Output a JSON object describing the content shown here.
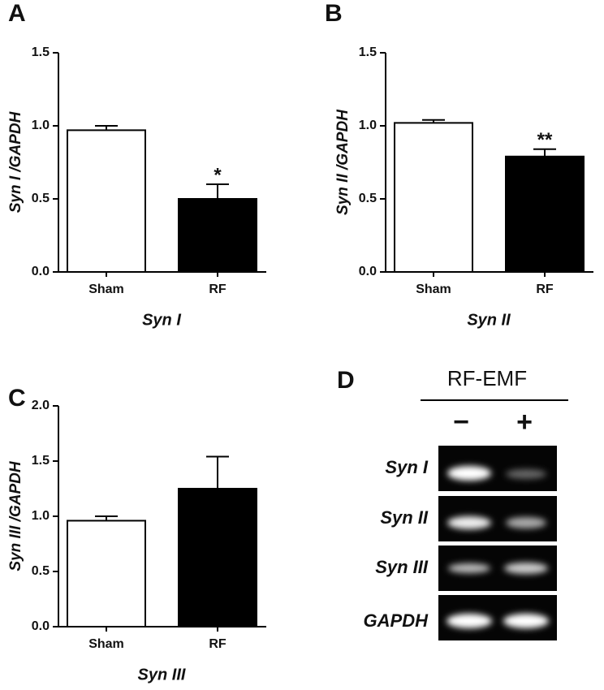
{
  "chart_data": [
    {
      "type": "bar",
      "panel": "A",
      "ylabel": "Syn I /GAPDH",
      "xlabel": "Syn I",
      "categories": [
        "Sham",
        "RF"
      ],
      "values": [
        0.97,
        0.5
      ],
      "errors": [
        0.03,
        0.1
      ],
      "colors": [
        "#ffffff",
        "#000000"
      ],
      "value_annotations": [
        null,
        "*"
      ],
      "ylim": [
        0,
        1.5
      ],
      "yticks": [
        {
          "value": 0,
          "label": "0.0"
        },
        0.5,
        {
          "value": 1,
          "label": "1.0"
        },
        1.5
      ]
    },
    {
      "type": "bar",
      "panel": "B",
      "ylabel": "Syn II /GAPDH",
      "xlabel": "Syn II",
      "categories": [
        "Sham",
        "RF"
      ],
      "values": [
        1.02,
        0.79
      ],
      "errors": [
        0.02,
        0.05
      ],
      "colors": [
        "#ffffff",
        "#000000"
      ],
      "value_annotations": [
        null,
        "**"
      ],
      "ylim": [
        0,
        1.5
      ],
      "yticks": [
        {
          "value": 0,
          "label": "0.0"
        },
        0.5,
        {
          "value": 1,
          "label": "1.0"
        },
        1.5
      ]
    },
    {
      "type": "bar",
      "panel": "C",
      "ylabel": "Syn III /GAPDH",
      "xlabel": "Syn III",
      "categories": [
        "Sham",
        "RF"
      ],
      "values": [
        0.96,
        1.25
      ],
      "errors": [
        0.04,
        0.29
      ],
      "colors": [
        "#ffffff",
        "#000000"
      ],
      "value_annotations": [
        null,
        null
      ],
      "ylim": [
        0,
        2
      ],
      "yticks": [
        {
          "value": 0,
          "label": "0.0"
        },
        0.5,
        {
          "value": 1,
          "label": "1.0"
        },
        1.5,
        {
          "value": 2,
          "label": "2.0"
        }
      ]
    }
  ],
  "gel": {
    "panel": "D",
    "header": "RF-EMF",
    "lanes": [
      "−",
      "+"
    ],
    "rows": [
      "Syn I",
      "Syn II",
      "Syn III",
      "GAPDH"
    ]
  }
}
